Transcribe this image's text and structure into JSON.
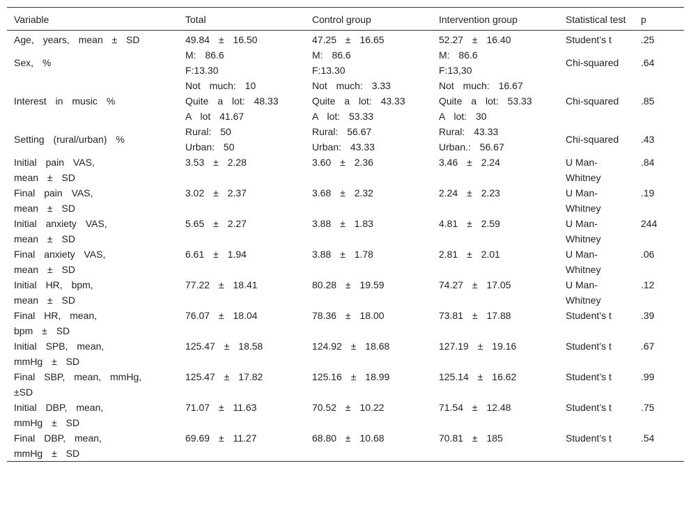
{
  "table": {
    "header": [
      "Variable",
      "Total",
      "Control group",
      "Intervention group",
      "Statistical test",
      "p"
    ],
    "rows": [
      [
        [
          "Age, years, mean ± SD"
        ],
        "49.84 ± 16.50",
        "47.25 ± 16.65",
        "52.27 ± 16.40",
        "Student’s t",
        ".25"
      ],
      [
        [
          "Sex, %"
        ],
        [
          "M: 86.6",
          "F:13.30"
        ],
        [
          "M: 86.6",
          "F:13.30"
        ],
        [
          "M: 86.6",
          "F:13,30"
        ],
        "Chi-squared",
        ".64"
      ],
      [
        [
          "Interest in music %"
        ],
        [
          "Not much: 10",
          "Quite a lot: 48.33",
          "A lot 41.67"
        ],
        [
          "Not much: 3.33",
          "Quite a lot: 43.33",
          "A lot: 53.33"
        ],
        [
          "Not much: 16.67",
          "Quite a lot: 53.33",
          "A lot: 30"
        ],
        "Chi-squared",
        ".85"
      ],
      [
        [
          "Setting (rural/urban) %"
        ],
        [
          "Rural: 50",
          "Urban: 50"
        ],
        [
          "Rural: 56.67",
          "Urban: 43.33"
        ],
        [
          "Rural: 43.33",
          "Urban.: 56.67"
        ],
        "Chi-squared",
        ".43"
      ],
      [
        [
          "Initial pain VAS,",
          "mean ± SD"
        ],
        "3.53 ± 2.28",
        "3.60 ± 2.36",
        "3.46 ± 2.24",
        "U Man-Whitney",
        ".84"
      ],
      [
        [
          "Final pain VAS,",
          "mean ± SD"
        ],
        "3.02 ± 2.37",
        "3.68 ± 2.32",
        "2.24 ± 2.23",
        "U Man-Whitney",
        ".19"
      ],
      [
        [
          "Initial anxiety VAS,",
          "mean ± SD"
        ],
        "5.65 ± 2.27",
        "3.88 ± 1.83",
        "4.81 ± 2.59",
        "U Man-Whitney",
        "244"
      ],
      [
        [
          "Final anxiety VAS,",
          "mean ± SD"
        ],
        "6.61 ± 1.94",
        "3.88 ± 1.78",
        "2.81 ± 2.01",
        "U Man-Whitney",
        ".06"
      ],
      [
        [
          "Initial HR, bpm,",
          "mean ± SD"
        ],
        "77.22 ± 18.41",
        "80.28 ± 19.59",
        "74.27 ± 17.05",
        "U Man-Whitney",
        ".12"
      ],
      [
        [
          "Final HR, mean,",
          "bpm ± SD"
        ],
        "76.07 ± 18.04",
        "78.36 ± 18.00",
        "73.81 ± 17.88",
        "Student’s t",
        ".39"
      ],
      [
        [
          "Initial SPB, mean,",
          "mmHg ± SD"
        ],
        "125.47 ± 18.58",
        "124.92 ± 18.68",
        "127.19 ± 19.16",
        "Student’s t",
        ".67"
      ],
      [
        [
          "Final SBP, mean, mmHg,",
          "±SD"
        ],
        "125.47 ± 17.82",
        "125.16 ± 18.99",
        "125.14 ± 16.62",
        "Student’s t",
        ".99"
      ],
      [
        [
          "Initial DBP, mean,",
          "mmHg ± SD"
        ],
        "71.07 ± 11.63",
        "70.52 ± 10.22",
        "71.54 ± 12.48",
        "Student’s t",
        ".75"
      ],
      [
        [
          "Final DBP, mean,",
          "mmHg ± SD"
        ],
        "69.69 ± 11.27",
        "68.80 ± 10.68",
        "70.81 ± 185",
        "Student’s t",
        ".54"
      ]
    ]
  }
}
